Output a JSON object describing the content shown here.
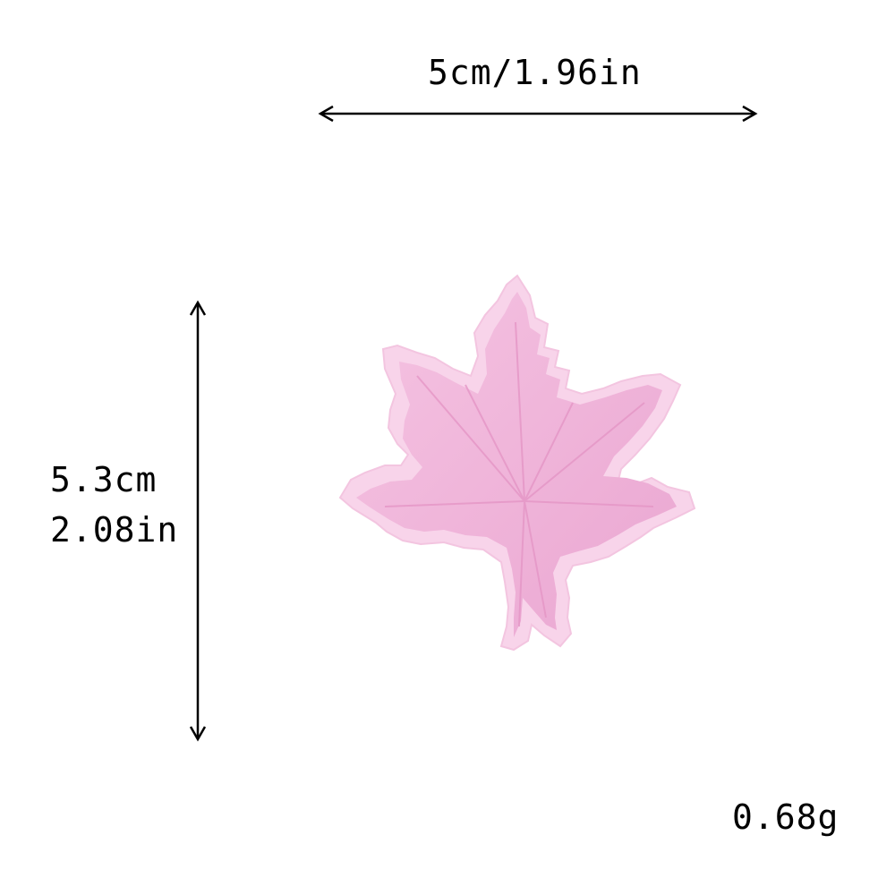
{
  "dimensions": {
    "width_label": "5cm/1.96in",
    "height_label_cm": "5.3cm",
    "height_label_in": "2.08in",
    "weight_label": "0.68g"
  },
  "product": {
    "icon": "maple-leaf-patch",
    "color": "#f2b8dc",
    "edge_color": "#f7d3ea"
  }
}
